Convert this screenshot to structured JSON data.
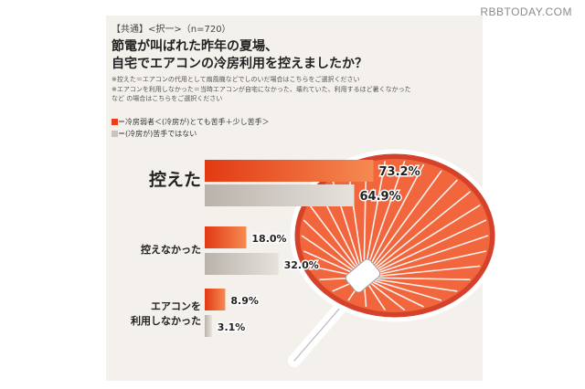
{
  "watermark": "RBBTODAY.COM",
  "header": {
    "meta": "【共通】<択一>（n=720）",
    "question_line1": "節電が叫ばれた昨年の夏場、",
    "question_line2": "自宅でエアコンの冷房利用を控えましたか？",
    "note1": "※控えた＝エアコンの代用として扇風機などでしのいだ場合はこちらをご選択ください",
    "note2": "※エアコンを利用しなかった＝当時エアコンが自宅になかった、壊れていた、利用するほど暑くなかった",
    "note3": "など の場合はこちらをご選択ください"
  },
  "legend": {
    "item1": "＝冷房弱者＜(冷房が)とても苦手＋少し苦手＞",
    "item2": "＝(冷房が)苦手ではない"
  },
  "chart_data": {
    "type": "bar",
    "orientation": "horizontal",
    "categories": [
      "控えた",
      "控えなかった",
      "エアコンを利用しなかった"
    ],
    "category_lines": [
      [
        "控えた"
      ],
      [
        "控えなかった"
      ],
      [
        "エアコンを",
        "利用しなかった"
      ]
    ],
    "series": [
      {
        "name": "冷房弱者＜(冷房が)とても苦手＋少し苦手＞",
        "values": [
          73.2,
          18.0,
          8.9
        ],
        "labels": [
          "73.2%",
          "18.0%",
          "8.9%"
        ],
        "color": "#e8421b"
      },
      {
        "name": "(冷房が)苦手ではない",
        "values": [
          64.9,
          32.0,
          3.1
        ],
        "labels": [
          "64.9%",
          "32.0%",
          "3.1%"
        ],
        "color": "#c9c4bd"
      }
    ],
    "xlim": [
      0,
      80
    ],
    "grid": false,
    "legend_position": "top-left",
    "colors": {
      "accent": "#e8421b",
      "neutral": "#c9c4bd",
      "fan_rim": "#c0392b",
      "fan_face": "#f2663d"
    }
  }
}
